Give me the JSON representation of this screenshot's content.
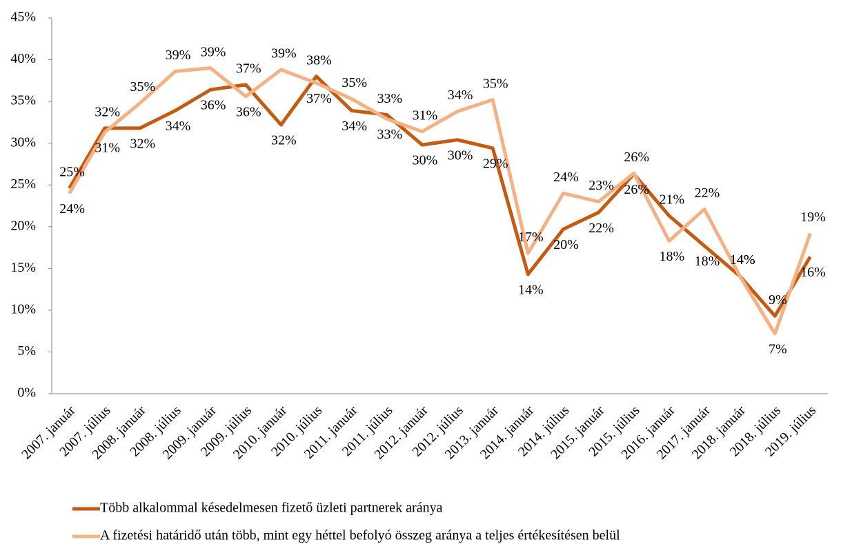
{
  "chart_data": {
    "type": "line",
    "categories": [
      "2007. január",
      "2007. július",
      "2008. január",
      "2008. július",
      "2009. január",
      "2009. július",
      "2010. január",
      "2010. július",
      "2011. január",
      "2011. július",
      "2012. január",
      "2012. július",
      "2013. január",
      "2014. január",
      "2014. július",
      "2015. január",
      "2015. július",
      "2016. január",
      "2017. január",
      "2018. január",
      "2018. július",
      "2019. július"
    ],
    "series": [
      {
        "name": "Több alkalommal késedelmesen fizető üzleti partnerek aránya",
        "color": "#c55a11",
        "values": [
          24.6,
          31.8,
          31.8,
          33.9,
          36.4,
          37.0,
          32.2,
          38.0,
          33.9,
          33.4,
          29.8,
          30.4,
          29.4,
          14.3,
          19.7,
          21.7,
          26.3,
          21.3,
          17.7,
          14.1,
          9.3,
          16.4
        ],
        "value_labels": [
          "25%",
          "32%",
          "32%",
          "34%",
          "36%",
          "37%",
          "32%",
          "38%",
          "34%",
          "33%",
          "30%",
          "30%",
          "29%",
          "14%",
          "20%",
          "22%",
          "26%",
          "21%",
          "18%",
          "14%",
          "9%",
          "16%"
        ]
      },
      {
        "name": "A fizetési határidő után több, mint egy héttel befolyó összeg aránya a teljes értékesítésen belül",
        "color": "#f4b183",
        "values": [
          24.0,
          31.3,
          34.8,
          38.6,
          39.0,
          35.6,
          38.8,
          37.2,
          35.3,
          32.9,
          31.4,
          33.8,
          35.2,
          16.8,
          24.0,
          23.0,
          26.4,
          18.3,
          22.1,
          14.1,
          7.2,
          19.2
        ],
        "value_labels": [
          "24%",
          "31%",
          "35%",
          "39%",
          "39%",
          "36%",
          "39%",
          "37%",
          "35%",
          "33%",
          "31%",
          "34%",
          "35%",
          "17%",
          "24%",
          "23%",
          "26%",
          "18%",
          "22%",
          "14%",
          "7%",
          "19%"
        ]
      }
    ],
    "ylim": [
      0,
      45
    ],
    "yticks": [
      {
        "value": 0,
        "label": "0%"
      },
      {
        "value": 5,
        "label": "5%"
      },
      {
        "value": 10,
        "label": "10%"
      },
      {
        "value": 15,
        "label": "15%"
      },
      {
        "value": 20,
        "label": "20%"
      },
      {
        "value": 25,
        "label": "25%"
      },
      {
        "value": 30,
        "label": "30%"
      },
      {
        "value": 35,
        "label": "35%"
      },
      {
        "value": 40,
        "label": "40%"
      },
      {
        "value": 45,
        "label": "45%"
      }
    ],
    "legend": "bottom"
  }
}
